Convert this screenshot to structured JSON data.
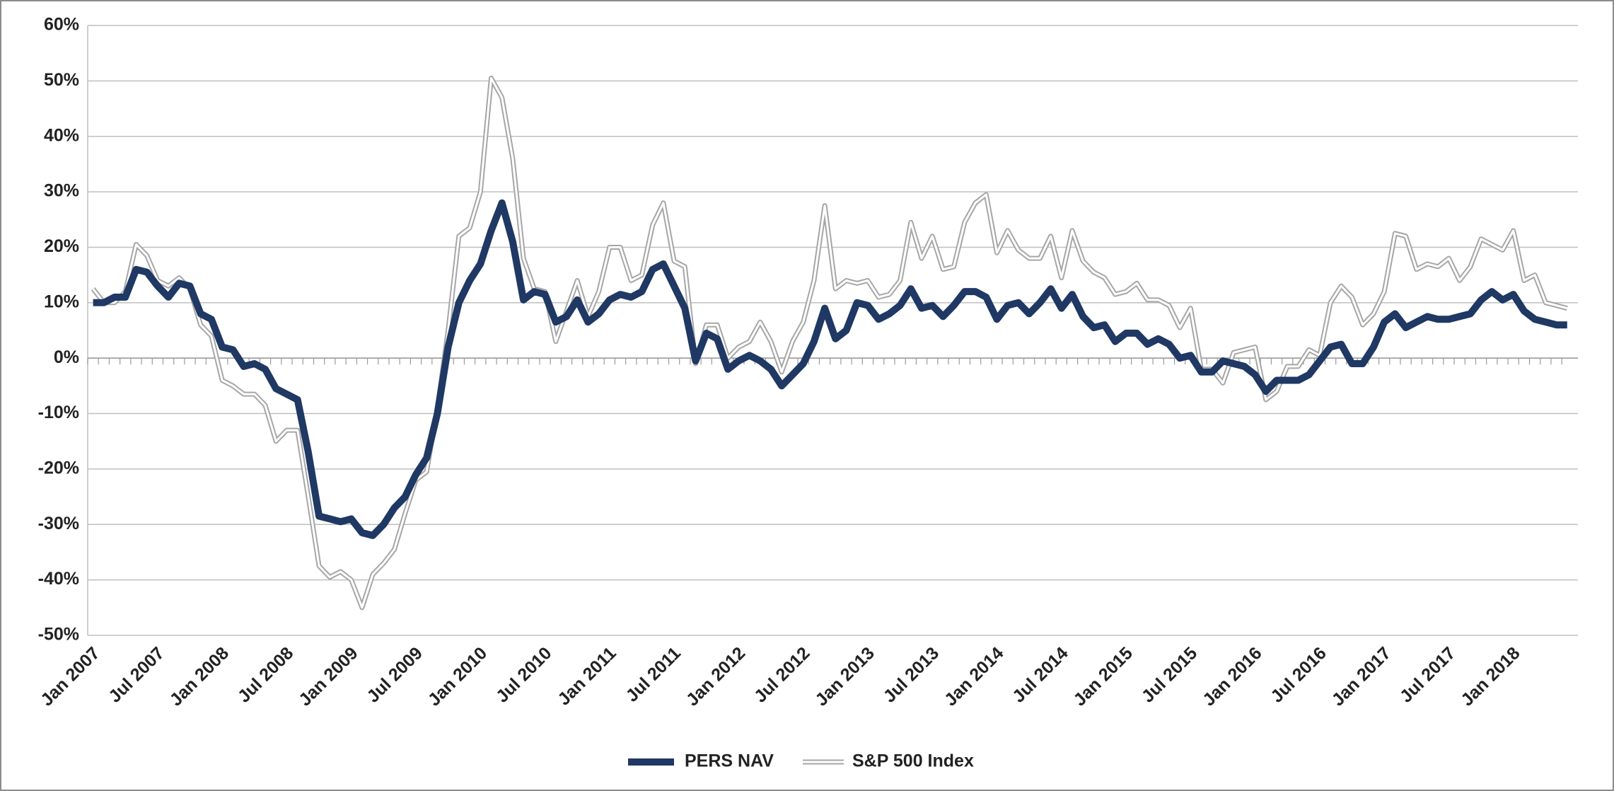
{
  "chart_data": {
    "type": "line",
    "categories": [
      "Jan 2007",
      null,
      null,
      null,
      null,
      null,
      "Jul 2007",
      null,
      null,
      null,
      null,
      null,
      "Jan 2008",
      null,
      null,
      null,
      null,
      null,
      "Jul 2008",
      null,
      null,
      null,
      null,
      null,
      "Jan 2009",
      null,
      null,
      null,
      null,
      null,
      "Jul 2009",
      null,
      null,
      null,
      null,
      null,
      "Jan 2010",
      null,
      null,
      null,
      null,
      null,
      "Jul 2010",
      null,
      null,
      null,
      null,
      null,
      "Jan 2011",
      null,
      null,
      null,
      null,
      null,
      "Jul 2011",
      null,
      null,
      null,
      null,
      null,
      "Jan 2012",
      null,
      null,
      null,
      null,
      null,
      "Jul 2012",
      null,
      null,
      null,
      null,
      null,
      "Jan 2013",
      null,
      null,
      null,
      null,
      null,
      "Jul 2013",
      null,
      null,
      null,
      null,
      null,
      "Jan 2014",
      null,
      null,
      null,
      null,
      null,
      "Jul 2014",
      null,
      null,
      null,
      null,
      null,
      "Jan 2015",
      null,
      null,
      null,
      null,
      null,
      "Jul 2015",
      null,
      null,
      null,
      null,
      null,
      "Jan 2016",
      null,
      null,
      null,
      null,
      null,
      "Jul 2016",
      null,
      null,
      null,
      null,
      null,
      "Jan 2017",
      null,
      null,
      null,
      null,
      null,
      "Jul 2017",
      null,
      null,
      null,
      null,
      null,
      "Jan 2018",
      null,
      null,
      null,
      null,
      null
    ],
    "series": [
      {
        "name": "PERS NAV",
        "color": "#1f3864",
        "style": "solid",
        "values": [
          10,
          10,
          11,
          11,
          16,
          15.5,
          13,
          11,
          13.5,
          13,
          8,
          7,
          2,
          1.5,
          -1.5,
          -1,
          -2,
          -5.5,
          -6.5,
          -7.5,
          -17,
          -28.5,
          -29,
          -29.5,
          -29,
          -31.5,
          -32,
          -30,
          -27,
          -25,
          -21,
          -18,
          -10,
          2,
          10,
          14,
          17,
          23,
          28,
          21,
          10.5,
          12,
          11.5,
          6.5,
          7.5,
          10.5,
          6.5,
          8,
          10.5,
          11.5,
          11,
          12,
          16,
          17,
          13,
          9,
          -0.5,
          4.5,
          3.5,
          -2,
          -0.5,
          0.5,
          -0.5,
          -2,
          -5,
          -3,
          -1,
          3,
          9,
          3.5,
          5,
          10,
          9.5,
          7,
          8,
          9.5,
          12.5,
          9,
          9.5,
          7.5,
          9.5,
          12,
          12,
          11,
          7,
          9.5,
          10,
          8,
          10,
          12.5,
          9,
          11.5,
          7.5,
          5.5,
          6,
          3,
          4.5,
          4.5,
          2.5,
          3.5,
          2.5,
          0,
          0.5,
          -2.5,
          -2.5,
          -0.5,
          -1,
          -1.5,
          -3,
          -6,
          -4,
          -4,
          -4,
          -3,
          -0.5,
          2,
          2.5,
          -1,
          -1,
          2,
          6.5,
          8,
          5.5,
          6.5,
          7.5,
          7,
          7,
          7.5,
          8,
          10.5,
          12,
          10.5,
          11.5,
          8.5,
          7,
          6.5,
          6,
          6
        ]
      },
      {
        "name": "S&P 500 Index",
        "color": "#a6a6a6",
        "style": "double",
        "values": [
          12.5,
          10,
          10,
          12,
          20.5,
          18.5,
          14,
          13,
          14.5,
          12.5,
          6,
          4,
          -4,
          -5,
          -6.5,
          -6.5,
          -8.5,
          -15,
          -13,
          -13,
          -25,
          -37.5,
          -39.5,
          -38.5,
          -40,
          -45,
          -39,
          -37,
          -34.5,
          -28,
          -22,
          -20.5,
          -9,
          5,
          22,
          23.5,
          30,
          50.5,
          47,
          36,
          18,
          12.5,
          12,
          3,
          8.5,
          14,
          7.5,
          12,
          20,
          20,
          14,
          15,
          24,
          28,
          17.5,
          16.5,
          -1,
          6,
          6,
          0,
          2,
          3,
          6.5,
          3,
          -2.5,
          3,
          6.5,
          14,
          27.5,
          12.5,
          14,
          13.5,
          14,
          11,
          11.5,
          14,
          24.5,
          18,
          22,
          16,
          16.5,
          24.5,
          28,
          29.5,
          19,
          23,
          19.5,
          18,
          18,
          22,
          14.5,
          23,
          17.5,
          15.5,
          14.5,
          11.5,
          12,
          13.5,
          10.5,
          10.5,
          9.5,
          5.5,
          9,
          -2,
          -2,
          -4.5,
          1,
          1.5,
          2,
          -7.5,
          -6,
          -1.5,
          -1.5,
          1.5,
          0.5,
          10,
          13,
          11,
          6,
          8,
          12,
          22.5,
          22,
          16,
          17,
          16.5,
          18,
          14,
          16.5,
          21.5,
          20.5,
          19.5,
          23,
          14,
          15,
          10,
          9.5,
          9
        ]
      }
    ],
    "ylim": [
      -50,
      60
    ],
    "yticks": [
      {
        "value": -50,
        "label": "-50%"
      },
      {
        "value": -40,
        "label": "-40%"
      },
      {
        "value": -30,
        "label": "-30%"
      },
      {
        "value": -20,
        "label": "-20%"
      },
      {
        "value": -10,
        "label": "-10%"
      },
      {
        "value": 0,
        "label": "0%"
      },
      {
        "value": 10,
        "label": "10%"
      },
      {
        "value": 20,
        "label": "20%"
      },
      {
        "value": 30,
        "label": "30%"
      },
      {
        "value": 40,
        "label": "40%"
      },
      {
        "value": 50,
        "label": "50%"
      },
      {
        "value": 60,
        "label": "60%"
      }
    ],
    "grid": true,
    "legend": "bottom"
  }
}
